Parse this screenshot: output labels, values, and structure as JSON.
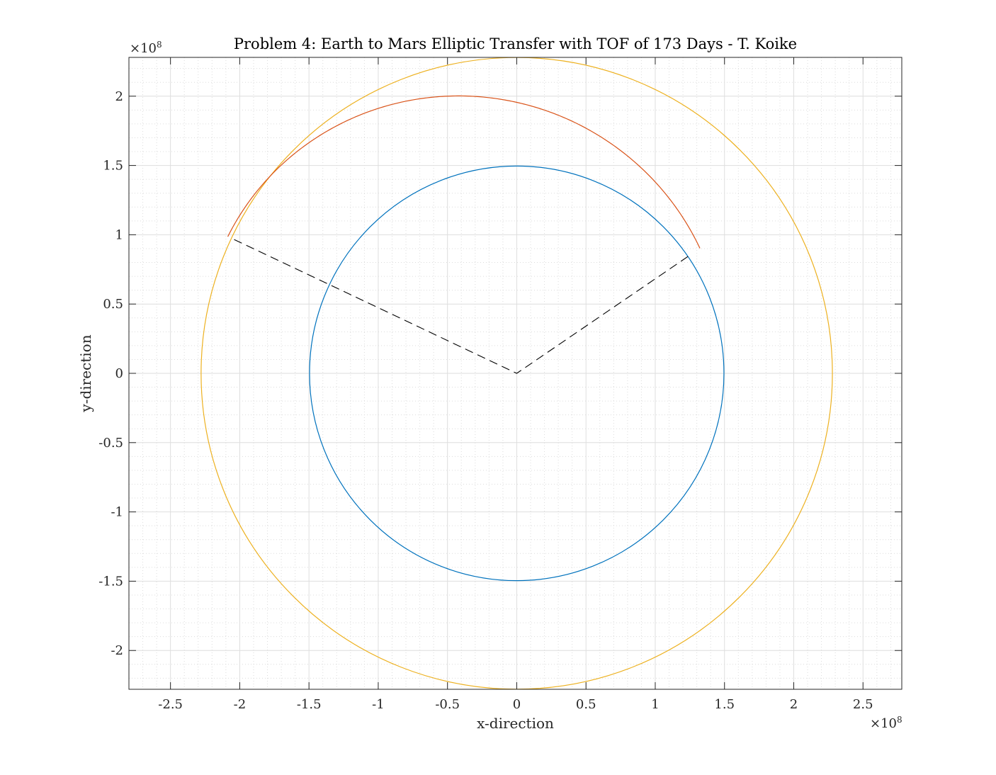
{
  "chart_data": {
    "type": "line",
    "title": "Problem 4: Earth to Mars Elliptic Transfer with TOF of 173 Days - T. Koike",
    "xlabel": "x-direction",
    "ylabel": "y-direction",
    "x_multiplier": {
      "base": "×10",
      "exponent": "8"
    },
    "y_multiplier": {
      "base": "×10",
      "exponent": "8"
    },
    "xlim": [
      -2.8,
      2.78
    ],
    "ylim": [
      -2.28,
      2.28
    ],
    "x_ticks": [
      {
        "value": -2.5,
        "label": "-2.5"
      },
      {
        "value": -2,
        "label": "-2"
      },
      {
        "value": -1.5,
        "label": "-1.5"
      },
      {
        "value": -1,
        "label": "-1"
      },
      {
        "value": -0.5,
        "label": "-0.5"
      },
      {
        "value": 0,
        "label": "0"
      },
      {
        "value": 0.5,
        "label": "0.5"
      },
      {
        "value": 1,
        "label": "1"
      },
      {
        "value": 1.5,
        "label": "1.5"
      },
      {
        "value": 2,
        "label": "2"
      },
      {
        "value": 2.5,
        "label": "2.5"
      }
    ],
    "y_ticks": [
      {
        "value": 2,
        "label": "2"
      },
      {
        "value": 1.5,
        "label": "1.5"
      },
      {
        "value": 1,
        "label": "1"
      },
      {
        "value": 0.5,
        "label": "0.5"
      },
      {
        "value": 0,
        "label": "0"
      },
      {
        "value": -0.5,
        "label": "-0.5"
      },
      {
        "value": -1,
        "label": "-1"
      },
      {
        "value": -1.5,
        "label": "-1.5"
      },
      {
        "value": -2,
        "label": "-2"
      }
    ],
    "grid": true,
    "minor_grid": true,
    "series": [
      {
        "kind": "circle",
        "center": [
          0,
          0
        ],
        "radius": 1.496,
        "color": "#0072bd"
      },
      {
        "kind": "circle",
        "center": [
          0,
          0
        ],
        "radius": 2.279,
        "color": "#edb120"
      },
      {
        "kind": "ellipse_arc",
        "color": "#d95319",
        "focus": [
          0,
          0
        ],
        "semi_major": 1.893,
        "eccentricity": 0.22,
        "periapsis_angle_deg": 339,
        "start_angle_deg": 34.3,
        "end_angle_deg": 154.7
      },
      {
        "kind": "polyline",
        "color": "#000000",
        "dashed": true,
        "points": [
          [
            1.236,
            0.843
          ],
          [
            0,
            0
          ],
          [
            -2.06,
            0.975
          ]
        ]
      }
    ]
  }
}
